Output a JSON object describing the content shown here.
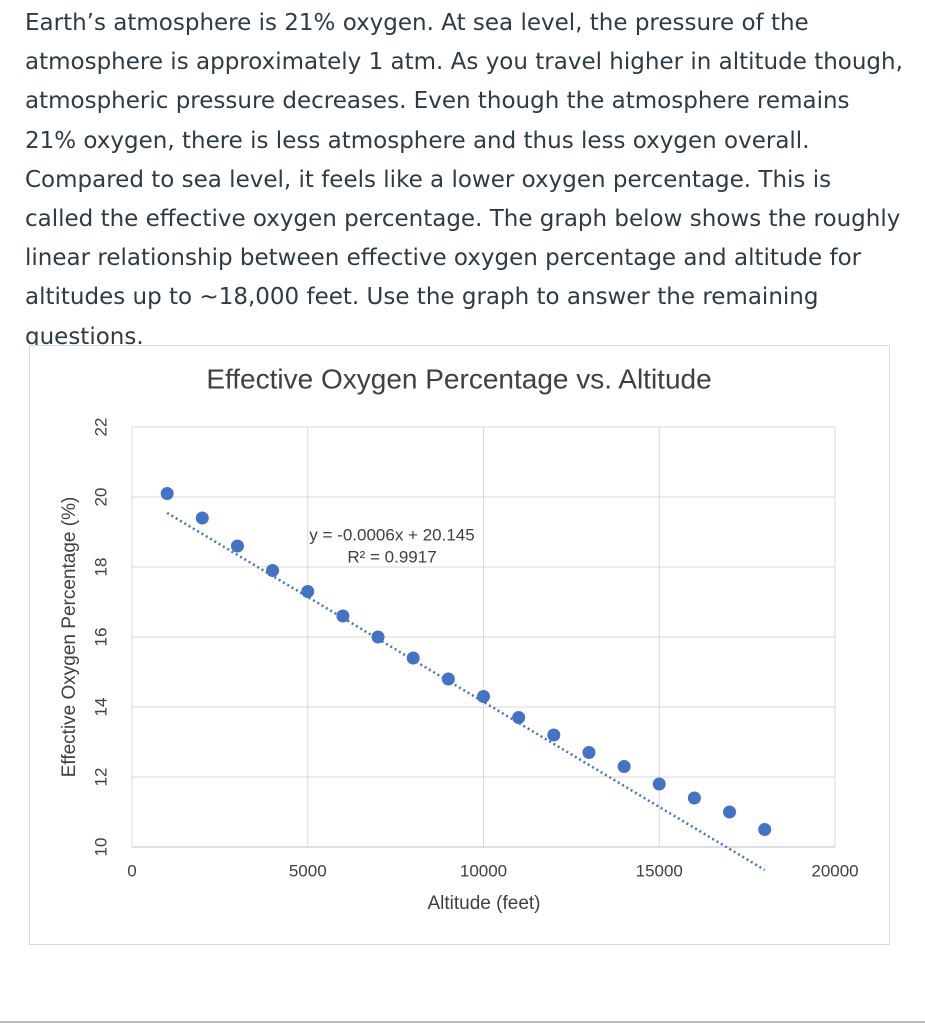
{
  "text": "Earth’s atmosphere is 21% oxygen. At sea level, the pressure of the atmosphere is approximately 1 atm. As you travel higher in altitude though, atmospheric pressure decreases. Even though the atmosphere remains 21% oxygen, there is less atmosphere and thus less oxygen overall. Compared to sea level, it feels like a lower oxygen percentage. This is called the effective oxygen percentage. The graph below shows the roughly linear relationship between effective oxygen percentage and altitude for altitudes up to ~18,000 feet. Use the graph to answer the remaining questions.",
  "chart_data": {
    "type": "scatter",
    "title": "Effective Oxygen Percentage vs. Altitude",
    "x_label": "Altitude (feet)",
    "y_label": "Effective Oxygen Percentage (%)",
    "x": [
      1000,
      2000,
      3000,
      4000,
      5000,
      6000,
      7000,
      8000,
      9000,
      10000,
      11000,
      12000,
      13000,
      14000,
      15000,
      16000,
      17000,
      18000
    ],
    "values": [
      20.1,
      19.4,
      18.6,
      17.9,
      17.3,
      16.6,
      16.0,
      15.4,
      14.8,
      14.3,
      13.7,
      13.2,
      12.7,
      12.3,
      11.8,
      11.4,
      11.0,
      10.5
    ],
    "color": "#4472c4",
    "xlim": [
      0,
      20000
    ],
    "xticks": [
      0,
      5000,
      10000,
      15000,
      20000
    ],
    "ylim": [
      10,
      22
    ],
    "yticks": [
      10,
      12,
      14,
      16,
      18,
      20,
      22
    ],
    "grid": true,
    "trendline": {
      "slope": -0.0006,
      "intercept": 20.145,
      "label": "y = -0.0006x + 20.145",
      "r2_label": "R² = 0.9917"
    }
  }
}
